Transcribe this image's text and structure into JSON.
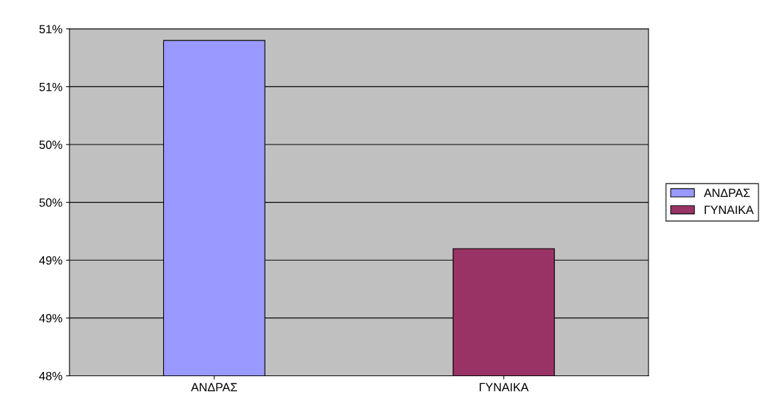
{
  "chart_data": {
    "type": "bar",
    "categories": [
      "ΑΝΔΡΑΣ",
      "ΓΥΝΑΙΚΑ"
    ],
    "series": [
      {
        "name": "ΑΝΔΡΑΣ",
        "color": "#9999ff",
        "values": [
          50.9,
          null
        ]
      },
      {
        "name": "ΓΥΝΑΙΚΑ",
        "color": "#993366",
        "values": [
          null,
          49.1
        ]
      }
    ],
    "ylim": [
      48,
      51
    ],
    "yticks": [
      {
        "value": 48,
        "label": "48%"
      },
      {
        "value": 48.5,
        "label": "49%"
      },
      {
        "value": 49,
        "label": "49%"
      },
      {
        "value": 49.5,
        "label": "50%"
      },
      {
        "value": 50,
        "label": "50%"
      },
      {
        "value": 50.5,
        "label": "51%"
      },
      {
        "value": 51,
        "label": "51%"
      }
    ],
    "grid": "y",
    "legend": "right"
  }
}
